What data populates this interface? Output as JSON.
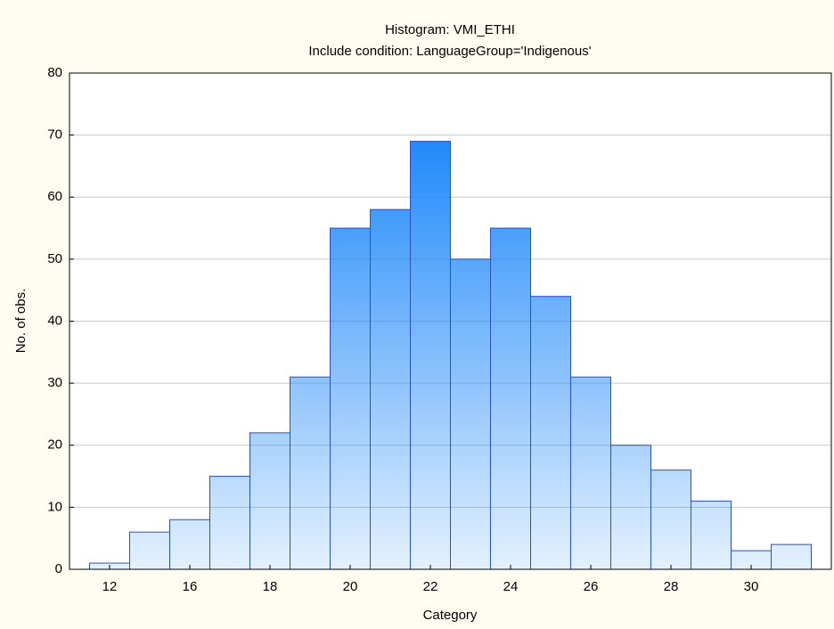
{
  "chart_data": {
    "type": "bar",
    "title": "Histogram: VMI_ETHI",
    "subtitle": "Include condition: LanguageGroup='Indigenous'",
    "x_label": "Category",
    "y_label": "No. of obs.",
    "categories": [
      "12",
      null,
      "16",
      null,
      "18",
      null,
      "20",
      null,
      "22",
      null,
      "24",
      null,
      "26",
      null,
      "28",
      null,
      "30",
      null
    ],
    "values": [
      1,
      6,
      8,
      15,
      22,
      31,
      55,
      58,
      69,
      50,
      55,
      44,
      31,
      20,
      16,
      11,
      3,
      4
    ],
    "color": "#1e88fa",
    "edge_color": "#2a50c0",
    "ylim": [
      0,
      80
    ],
    "yticks": [
      0,
      10,
      20,
      30,
      40,
      50,
      60,
      70,
      80
    ],
    "grid": true
  }
}
